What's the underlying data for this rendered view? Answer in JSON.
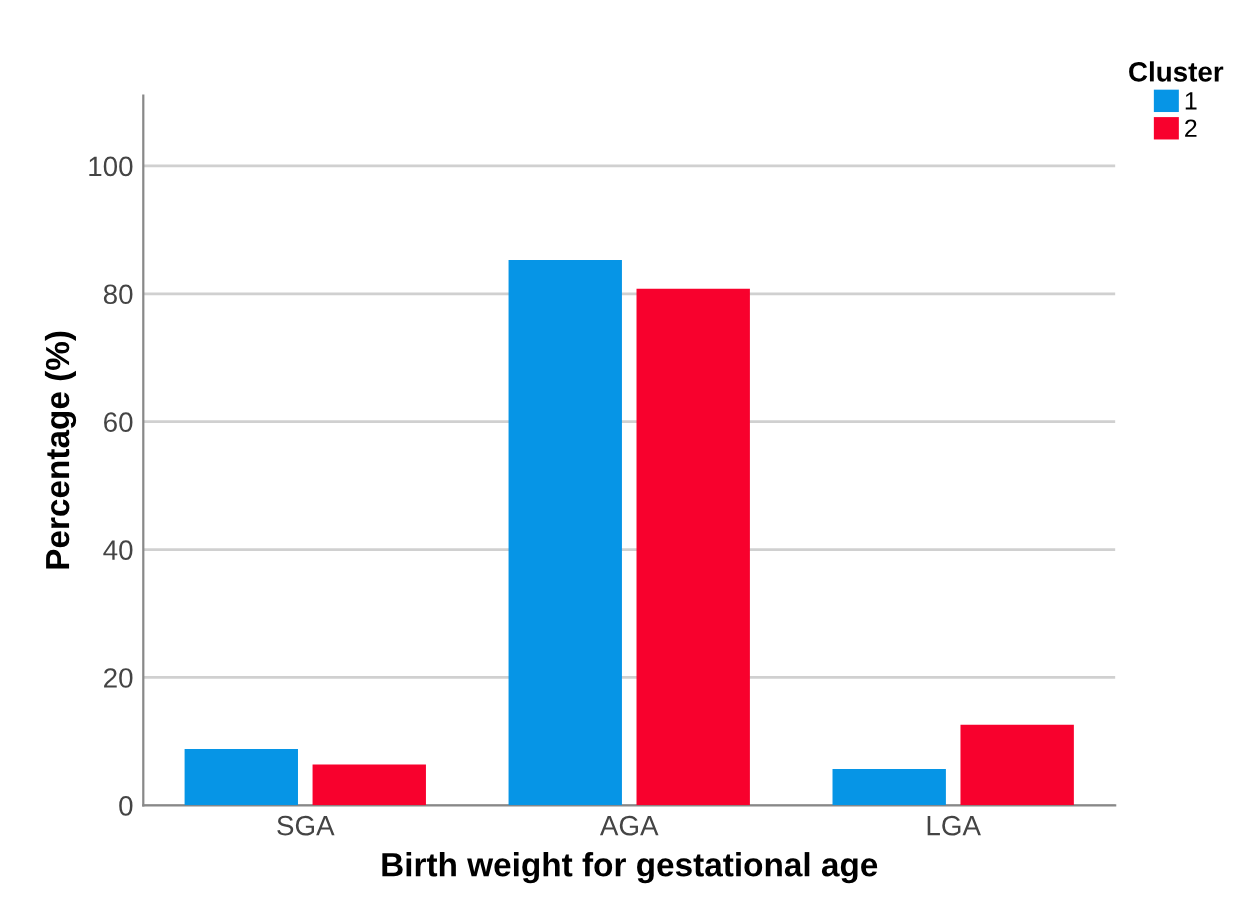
{
  "chart_data": {
    "type": "bar",
    "xlabel": "Birth weight for gestational age",
    "ylabel": "Percentage (%)",
    "legend_title": "Cluster",
    "categories": [
      "SGA",
      "AGA",
      "LGA"
    ],
    "series": [
      {
        "name": "1",
        "color": "#0695e6",
        "values": [
          8.8,
          85.3,
          5.7
        ]
      },
      {
        "name": "2",
        "color": "#f8012d",
        "values": [
          6.4,
          80.8,
          12.6
        ]
      }
    ],
    "ylim": [
      0,
      111
    ],
    "yticks": [
      0,
      20,
      40,
      60,
      80,
      100
    ],
    "grid": "y",
    "legend": "top right"
  }
}
